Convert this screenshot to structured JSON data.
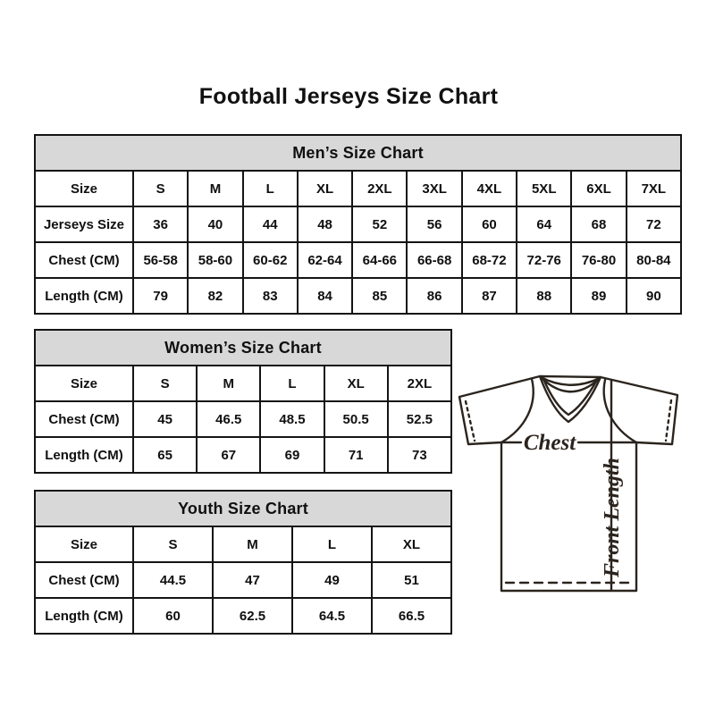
{
  "page_title": "Football Jerseys Size Chart",
  "tables": {
    "men": {
      "title": "Men’s Size Chart",
      "rows": [
        [
          "Size",
          "S",
          "M",
          "L",
          "XL",
          "2XL",
          "3XL",
          "4XL",
          "5XL",
          "6XL",
          "7XL"
        ],
        [
          "Jerseys Size",
          "36",
          "40",
          "44",
          "48",
          "52",
          "56",
          "60",
          "64",
          "68",
          "72"
        ],
        [
          "Chest (CM)",
          "56-58",
          "58-60",
          "60-62",
          "62-64",
          "64-66",
          "66-68",
          "68-72",
          "72-76",
          "76-80",
          "80-84"
        ],
        [
          "Length (CM)",
          "79",
          "82",
          "83",
          "84",
          "85",
          "86",
          "87",
          "88",
          "89",
          "90"
        ]
      ]
    },
    "women": {
      "title": "Women’s Size Chart",
      "rows": [
        [
          "Size",
          "S",
          "M",
          "L",
          "XL",
          "2XL"
        ],
        [
          "Chest (CM)",
          "45",
          "46.5",
          "48.5",
          "50.5",
          "52.5"
        ],
        [
          "Length (CM)",
          "65",
          "67",
          "69",
          "71",
          "73"
        ]
      ]
    },
    "youth": {
      "title": "Youth Size Chart",
      "rows": [
        [
          "Size",
          "S",
          "M",
          "L",
          "XL"
        ],
        [
          "Chest (CM)",
          "44.5",
          "47",
          "49",
          "51"
        ],
        [
          "Length (CM)",
          "60",
          "62.5",
          "64.5",
          "66.5"
        ]
      ]
    }
  },
  "diagram": {
    "chest_label": "Chest",
    "front_length_label": "Front Length"
  },
  "colors": {
    "table_header_bg": "#d8d8d8",
    "table_border": "#141414",
    "jersey_line": "#2b241e",
    "text": "#111111"
  }
}
